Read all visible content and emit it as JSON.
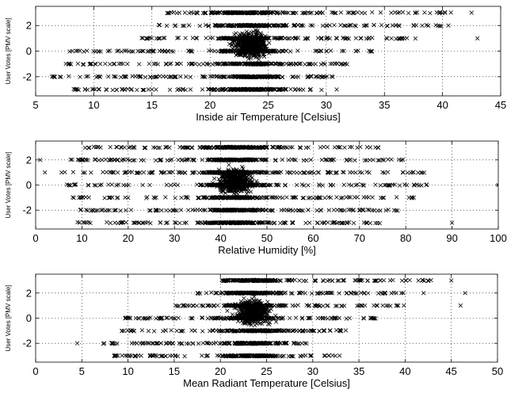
{
  "chart_data": [
    {
      "type": "scatter",
      "marker": "x",
      "marker_color": "#000000",
      "grid": "dotted",
      "xlabel": "Inside air Temperature [Celsius]",
      "ylabel": "User Votes [PMV scale]",
      "xlim": [
        5,
        45
      ],
      "ylim": [
        -3.5,
        3.5
      ],
      "xticks": [
        5,
        10,
        15,
        20,
        25,
        30,
        35,
        40,
        45
      ],
      "yticks": [
        -2,
        0,
        2
      ],
      "vote_levels": [
        -3,
        -2,
        -1,
        0,
        1,
        2,
        3
      ],
      "band_ranges": {
        "-3": [
          8,
          31
        ],
        "-2": [
          6.2,
          31
        ],
        "-1": [
          7.5,
          32
        ],
        "0": [
          7.8,
          34
        ],
        "1": [
          14,
          38
        ],
        "2": [
          15,
          40
        ],
        "3": [
          16,
          41
        ]
      },
      "dense_center": [
        23.5,
        0.5
      ],
      "outliers": [
        [
          42.5,
          3
        ],
        [
          43,
          1
        ],
        [
          40.5,
          2
        ]
      ]
    },
    {
      "type": "scatter",
      "marker": "x",
      "marker_color": "#000000",
      "grid": "dotted",
      "xlabel": "Relative Humidity [%]",
      "ylabel": "User Votes [PMV scale]",
      "xlim": [
        0,
        100
      ],
      "ylim": [
        -3.5,
        3.5
      ],
      "xticks": [
        0,
        10,
        20,
        30,
        40,
        50,
        60,
        70,
        80,
        90,
        100
      ],
      "yticks": [
        -2,
        0,
        2
      ],
      "vote_levels": [
        -3,
        -2,
        -1,
        0,
        1,
        2,
        3
      ],
      "band_ranges": {
        "-3": [
          9,
          76
        ],
        "-2": [
          9,
          79
        ],
        "-1": [
          8,
          82
        ],
        "0": [
          5,
          88
        ],
        "1": [
          5,
          84
        ],
        "2": [
          7,
          80
        ],
        "3": [
          10,
          75
        ]
      },
      "dense_center": [
        43,
        0.3
      ],
      "outliers": [
        [
          100,
          0
        ],
        [
          90,
          -3
        ],
        [
          2,
          1
        ],
        [
          1,
          2
        ]
      ]
    },
    {
      "type": "scatter",
      "marker": "x",
      "marker_color": "#000000",
      "grid": "dotted",
      "xlabel": "Mean Radiant Temperature [Celsius]",
      "ylabel": "User Votes [PMV scale]",
      "xlim": [
        0,
        50
      ],
      "ylim": [
        -3.5,
        3.5
      ],
      "xticks": [
        0,
        5,
        10,
        15,
        20,
        25,
        30,
        35,
        40,
        45,
        50
      ],
      "yticks": [
        -2,
        0,
        2
      ],
      "vote_levels": [
        -3,
        -2,
        -1,
        0,
        1,
        2,
        3
      ],
      "band_ranges": {
        "-3": [
          8,
          33
        ],
        "-2": [
          7,
          30
        ],
        "-1": [
          9,
          34
        ],
        "0": [
          9,
          37
        ],
        "1": [
          15,
          40
        ],
        "2": [
          17,
          40
        ],
        "3": [
          20,
          43
        ]
      },
      "dense_center": [
        23.5,
        0.5
      ],
      "outliers": [
        [
          4.5,
          -2
        ],
        [
          45,
          3
        ],
        [
          46.5,
          2
        ],
        [
          46,
          1
        ],
        [
          42,
          2
        ]
      ]
    }
  ]
}
